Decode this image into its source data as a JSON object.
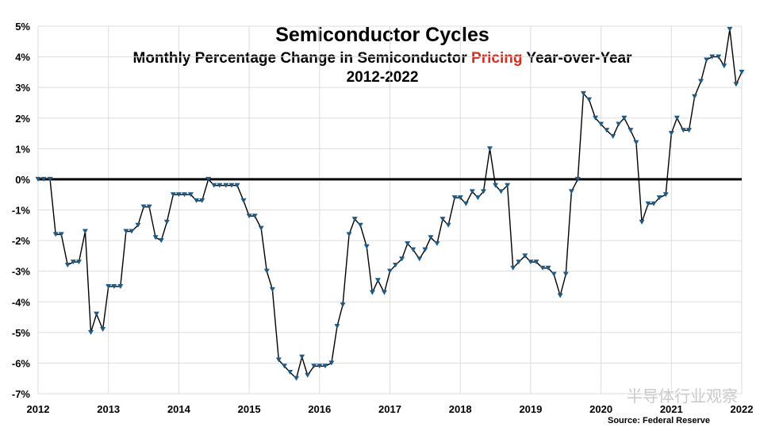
{
  "chart_data": {
    "type": "line",
    "title": "Semiconductor Cycles",
    "subtitle_parts": [
      "Monthly Percentage Change in Semiconductor ",
      "Pricing",
      " Year-over-Year"
    ],
    "subtitle_colors": [
      "#000000",
      "#d62a1e",
      "#000000"
    ],
    "period": "2012-2022",
    "source": "Source: Federal Reserve",
    "watermark": "半导体行业观察",
    "xlim": [
      2012,
      2022
    ],
    "xticks": [
      2012,
      2013,
      2014,
      2015,
      2016,
      2017,
      2018,
      2019,
      2020,
      2021,
      2022
    ],
    "ylim": [
      -7,
      5
    ],
    "yticks": [
      {
        "value": -7,
        "label": "-7%"
      },
      {
        "value": -6,
        "label": "-6%"
      },
      {
        "value": -5,
        "label": "-5%"
      },
      {
        "value": -4,
        "label": "-4%"
      },
      {
        "value": -3,
        "label": "-3%"
      },
      {
        "value": -2,
        "label": "-2%"
      },
      {
        "value": -1,
        "label": "-1%"
      },
      {
        "value": 0,
        "label": "0%"
      },
      {
        "value": 1,
        "label": "1%"
      },
      {
        "value": 2,
        "label": "2%"
      },
      {
        "value": 3,
        "label": "3%"
      },
      {
        "value": 4,
        "label": "4%"
      },
      {
        "value": 5,
        "label": "5%"
      }
    ],
    "grid": true,
    "x": [
      2012,
      2012.08,
      2012.17,
      2012.25,
      2012.33,
      2012.42,
      2012.5,
      2012.58,
      2012.67,
      2012.75,
      2012.83,
      2012.92,
      2013,
      2013.08,
      2013.17,
      2013.25,
      2013.33,
      2013.42,
      2013.5,
      2013.58,
      2013.67,
      2013.75,
      2013.83,
      2013.92,
      2014,
      2014.08,
      2014.17,
      2014.25,
      2014.33,
      2014.42,
      2014.5,
      2014.58,
      2014.67,
      2014.75,
      2014.83,
      2014.92,
      2015,
      2015.08,
      2015.17,
      2015.25,
      2015.33,
      2015.42,
      2015.5,
      2015.58,
      2015.67,
      2015.75,
      2015.83,
      2015.92,
      2016,
      2016.08,
      2016.17,
      2016.25,
      2016.33,
      2016.42,
      2016.5,
      2016.58,
      2016.67,
      2016.75,
      2016.83,
      2016.92,
      2017,
      2017.08,
      2017.17,
      2017.25,
      2017.33,
      2017.42,
      2017.5,
      2017.58,
      2017.67,
      2017.75,
      2017.83,
      2017.92,
      2018,
      2018.08,
      2018.17,
      2018.25,
      2018.33,
      2018.42,
      2018.5,
      2018.58,
      2018.67,
      2018.75,
      2018.83,
      2018.92,
      2019,
      2019.08,
      2019.17,
      2019.25,
      2019.33,
      2019.42,
      2019.5,
      2019.58,
      2019.67,
      2019.75,
      2019.83,
      2019.92,
      2020,
      2020.08,
      2020.17,
      2020.25,
      2020.33,
      2020.42,
      2020.5,
      2020.58,
      2020.67,
      2020.75,
      2020.83,
      2020.92,
      2021,
      2021.08,
      2021.17,
      2021.25,
      2021.33,
      2021.42,
      2021.5,
      2021.58,
      2021.67,
      2021.75,
      2021.83,
      2021.92,
      2022
    ],
    "series": [
      {
        "color": "#000000",
        "marker_color": "#1f5a85",
        "values": [
          0,
          0,
          0,
          -1.8,
          -1.8,
          -2.8,
          -2.7,
          -2.7,
          -1.7,
          -5.0,
          -4.4,
          -4.9,
          -3.5,
          -3.5,
          -3.5,
          -1.7,
          -1.7,
          -1.5,
          -0.9,
          -0.9,
          -1.9,
          -2.0,
          -1.4,
          -0.5,
          -0.5,
          -0.5,
          -0.5,
          -0.7,
          -0.7,
          0,
          -0.2,
          -0.2,
          -0.2,
          -0.2,
          -0.2,
          -0.7,
          -1.2,
          -1.2,
          -1.6,
          -3.0,
          -3.6,
          -5.9,
          -6.1,
          -6.3,
          -6.5,
          -5.8,
          -6.4,
          -6.1,
          -6.1,
          -6.1,
          -6.0,
          -4.8,
          -4.1,
          -1.8,
          -1.3,
          -1.5,
          -2.2,
          -3.7,
          -3.3,
          -3.7,
          -3.0,
          -2.8,
          -2.6,
          -2.1,
          -2.3,
          -2.6,
          -2.3,
          -1.9,
          -2.1,
          -1.3,
          -1.5,
          -0.6,
          -0.6,
          -0.8,
          -0.4,
          -0.6,
          -0.4,
          1.0,
          -0.2,
          -0.4,
          -0.2,
          -2.9,
          -2.7,
          -2.5,
          -2.7,
          -2.7,
          -2.9,
          -2.9,
          -3.1,
          -3.8,
          -3.1,
          -0.4,
          0,
          2.8,
          2.6,
          2.0,
          1.8,
          1.6,
          1.4,
          1.8,
          2.0,
          1.6,
          1.2,
          -1.4,
          -0.8,
          -0.8,
          -0.6,
          -0.5,
          1.5,
          2.0,
          1.6,
          1.6,
          2.7,
          3.2,
          3.9,
          4.0,
          4.0,
          3.7,
          4.9,
          3.1,
          3.5
        ]
      }
    ]
  }
}
